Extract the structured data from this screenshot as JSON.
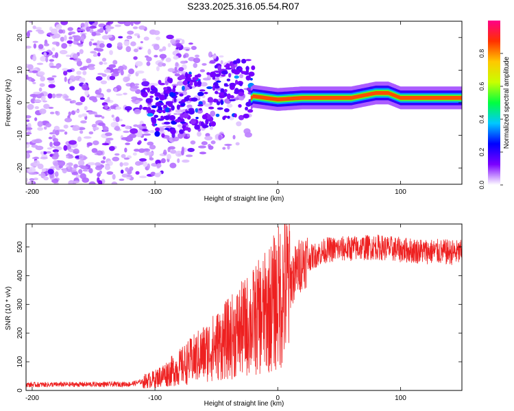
{
  "title": "S233.2025.316.05.54.R07",
  "chart_data": [
    {
      "type": "heatmap",
      "name": "spectrogram",
      "xlabel": "Height of straight line (km)",
      "ylabel": "Frequency (Hz)",
      "xlim": [
        -205,
        150
      ],
      "ylim": [
        -25,
        25
      ],
      "xticks": [
        -200,
        -100,
        0,
        100
      ],
      "yticks": [
        -20,
        -10,
        0,
        10,
        20
      ],
      "colorbar": {
        "label": "Normalized spectral amplitude",
        "range": [
          0,
          1
        ],
        "ticks": [
          0.0,
          0.2,
          0.4,
          0.6,
          0.8
        ],
        "colors": [
          "#ffffff",
          "#7b00ff",
          "#0000ff",
          "#00c8ff",
          "#00ff40",
          "#c8ff00",
          "#ffc800",
          "#ff3000",
          "#ff0088"
        ]
      },
      "ridge": {
        "description": "narrow high-amplitude line near 1-3 Hz from about -20 km to 150 km",
        "x": [
          -20,
          0,
          20,
          40,
          60,
          80,
          90,
          100,
          120,
          150
        ],
        "freq": [
          2,
          1,
          1.5,
          1.5,
          1.5,
          3,
          3,
          1.5,
          1.5,
          1.5
        ]
      },
      "noise_region": {
        "x_start": -205,
        "x_end": -20
      }
    },
    {
      "type": "line",
      "name": "snr",
      "xlabel": "Height of straight line (km)",
      "ylabel": "SNR (10 * v/v)",
      "xlim": [
        -205,
        150
      ],
      "ylim": [
        0,
        580
      ],
      "xticks": [
        -200,
        -100,
        0,
        100
      ],
      "yticks": [
        0,
        100,
        200,
        300,
        400,
        500
      ],
      "color": "#ee2020",
      "series": [
        {
          "name": "snr_envelope",
          "x": [
            -205,
            -120,
            -100,
            -80,
            -60,
            -40,
            -20,
            -10,
            0,
            10,
            20,
            40,
            60,
            80,
            100,
            120,
            150
          ],
          "values": [
            20,
            22,
            40,
            80,
            130,
            180,
            240,
            270,
            320,
            380,
            450,
            490,
            495,
            500,
            490,
            485,
            480
          ]
        }
      ]
    }
  ]
}
